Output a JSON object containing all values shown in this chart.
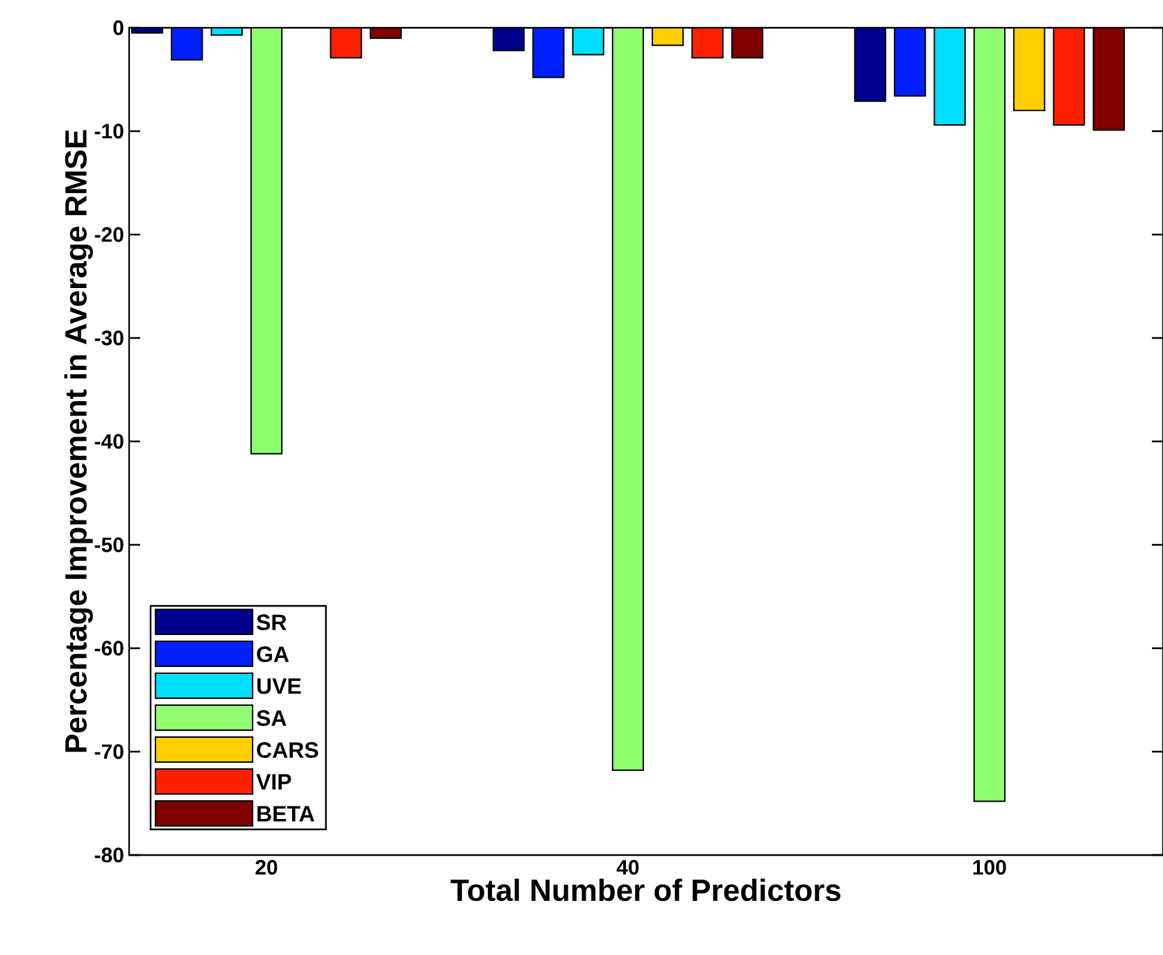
{
  "chart_data": {
    "type": "bar",
    "xlabel": "Total Number of Predictors",
    "ylabel": "Percentage Improvement in Average RMSE",
    "categories": [
      "20",
      "40",
      "100"
    ],
    "series": [
      {
        "name": "SR",
        "color": "#00008f",
        "values": [
          -0.5,
          -2.2,
          -7.1
        ]
      },
      {
        "name": "GA",
        "color": "#0020ff",
        "values": [
          -3.1,
          -4.8,
          -6.6
        ]
      },
      {
        "name": "UVE",
        "color": "#00dfff",
        "values": [
          -0.7,
          -2.6,
          -9.4
        ]
      },
      {
        "name": "SA",
        "color": "#8fff6f",
        "values": [
          -41.2,
          -71.8,
          -74.8
        ]
      },
      {
        "name": "CARS",
        "color": "#ffcf00",
        "values": [
          0,
          -1.7,
          -8.0
        ]
      },
      {
        "name": "VIP",
        "color": "#ff2000",
        "values": [
          -2.9,
          -2.9,
          -9.4
        ]
      },
      {
        "name": "BETA",
        "color": "#800000",
        "values": [
          -1.0,
          -2.9,
          -9.9
        ]
      }
    ],
    "ylim": [
      -80,
      0
    ],
    "yticks": [
      -80,
      -70,
      -60,
      -50,
      -40,
      -30,
      -20,
      -10,
      0
    ],
    "grid": false,
    "legend": "bottom left"
  }
}
